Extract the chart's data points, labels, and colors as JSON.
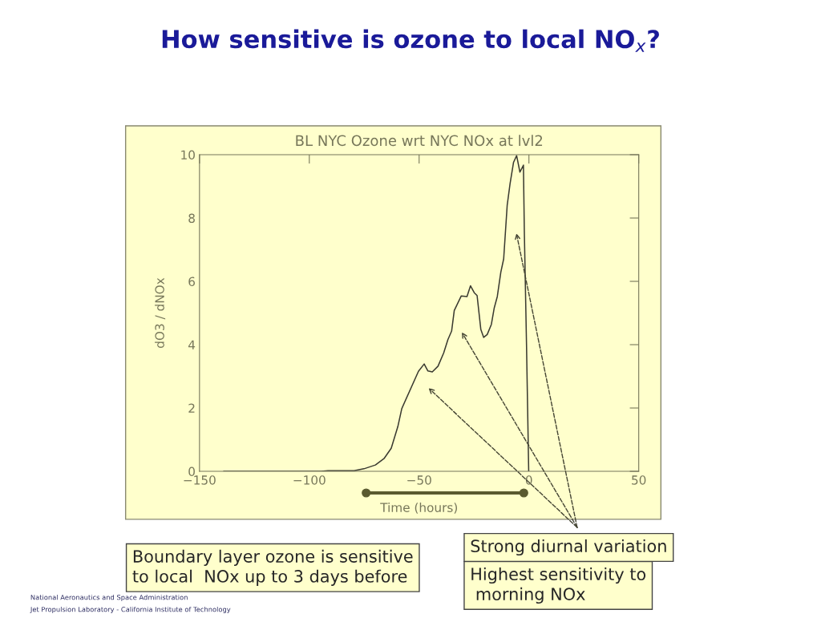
{
  "chart_data": {
    "type": "line",
    "title": "BL NYC Ozone wrt NYC NOx at lvl2",
    "xlabel": "Time (hours)",
    "ylabel": "dO3 / dNOx",
    "xlim": [
      -150,
      50
    ],
    "xticks": [
      {
        "value": -150,
        "label": "−150"
      },
      {
        "value": -100,
        "label": "−100"
      },
      {
        "value": -50,
        "label": "−50"
      },
      0,
      50
    ],
    "ylim": [
      0,
      10
    ],
    "yticks": [
      0,
      2,
      4,
      6,
      8,
      10
    ],
    "grid": false,
    "legend": false,
    "series": [
      {
        "color": "#3a3a30",
        "x": [
          -139,
          -94.6,
          -91.5,
          -79.6,
          -75.1,
          -69.9,
          -66,
          -62.7,
          -59.7,
          -57.9,
          -50.3,
          -47.7,
          -46.0,
          -44.0,
          -41.4,
          -38.8,
          -36.9,
          -35.2,
          -34.0,
          -30.8,
          -28.2,
          -26.6,
          -24.9,
          -23.6,
          -21.9,
          -20.6,
          -19.0,
          -17.1,
          -15.8,
          -14.4,
          -12.8,
          -11.5,
          -9.9,
          -8.6,
          -7.0,
          -5.6,
          -4.1,
          -2.5,
          -2.1,
          -1.1,
          -0.1
        ],
        "values": [
          0,
          0,
          0.02,
          0.02,
          0.08,
          0.2,
          0.4,
          0.73,
          1.41,
          1.98,
          3.16,
          3.39,
          3.17,
          3.14,
          3.32,
          3.74,
          4.16,
          4.43,
          5.08,
          5.54,
          5.52,
          5.86,
          5.64,
          5.55,
          4.48,
          4.23,
          4.32,
          4.64,
          5.16,
          5.52,
          6.29,
          6.71,
          8.4,
          9.08,
          9.76,
          9.97,
          9.45,
          9.67,
          7.6,
          4.0,
          0
        ]
      }
    ],
    "annotations": [
      "How sensitive is ozone to local NO$_{x}$?",
      "Boundary layer ozone is sensitive\nto local  NOx up to 3 days before",
      "Strong diurnal variation",
      "Highest sensitivity to\n morning NOx",
      "National Aeronautics and Space Administration",
      "Jet Propulsion Laboratory - California Institute of Technology"
    ]
  }
}
